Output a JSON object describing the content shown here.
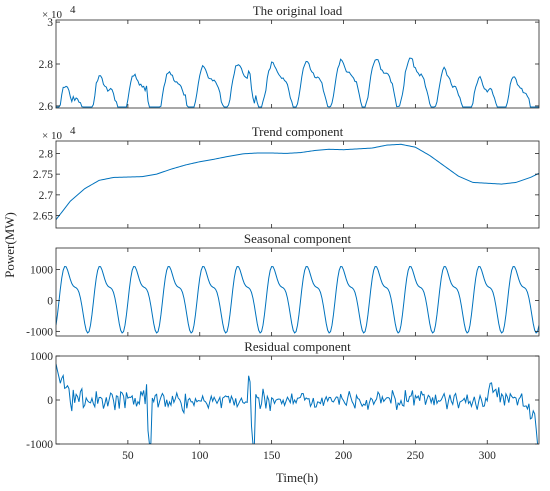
{
  "figure": {
    "xlabel": "Time(h)",
    "ylabel": "Power(MW)",
    "line_color": "#0072BD"
  },
  "chart_data": [
    {
      "type": "line",
      "title": "The original load",
      "exponent_label": "× 10",
      "exponent_power": "4",
      "xlim": [
        0,
        336
      ],
      "ylim": [
        25900,
        30100
      ],
      "yticks": [
        26000,
        28000,
        30000
      ],
      "ytick_labels": [
        "2.6",
        "2.8",
        "3"
      ],
      "xticks": [
        50,
        100,
        150,
        200,
        250,
        300
      ],
      "xtick_labels": [],
      "pattern": {
        "periodic_hours": 24,
        "peaks_near": 28800,
        "troughs_near": 26200
      }
    },
    {
      "type": "line",
      "title": "Trend component",
      "exponent_label": "× 10",
      "exponent_power": "4",
      "xlim": [
        0,
        336
      ],
      "ylim": [
        26200,
        28300
      ],
      "yticks": [
        26500,
        27000,
        27500,
        28000
      ],
      "ytick_labels": [
        "2.65",
        "2.7",
        "2.75",
        "2.8"
      ],
      "xticks": [
        50,
        100,
        150,
        200,
        250,
        300
      ],
      "xtick_labels": [],
      "series": [
        {
          "x": [
            0,
            10,
            20,
            30,
            40,
            50,
            60,
            70,
            80,
            90,
            100,
            110,
            120,
            130,
            140,
            150,
            160,
            170,
            180,
            190,
            200,
            210,
            220,
            230,
            240,
            250,
            260,
            270,
            280,
            290,
            300,
            310,
            320,
            330,
            336
          ],
          "y": [
            26400,
            26850,
            27150,
            27350,
            27420,
            27430,
            27440,
            27500,
            27620,
            27720,
            27800,
            27860,
            27930,
            27990,
            28010,
            28010,
            28000,
            28020,
            28070,
            28100,
            28090,
            28110,
            28130,
            28200,
            28220,
            28150,
            27950,
            27700,
            27450,
            27300,
            27280,
            27260,
            27300,
            27420,
            27520
          ]
        }
      ]
    },
    {
      "type": "line",
      "title": "Seasonal component",
      "xlim": [
        0,
        336
      ],
      "ylim": [
        -1150,
        1700
      ],
      "yticks": [
        -1000,
        0,
        1000
      ],
      "ytick_labels": [
        "-1000",
        "0",
        "1000"
      ],
      "xticks": [
        50,
        100,
        150,
        200,
        250,
        300
      ],
      "xtick_labels": [],
      "pattern": {
        "period_hours": 24,
        "peak": 1400,
        "trough": -1000
      }
    },
    {
      "type": "line",
      "title": "Residual component",
      "xlim": [
        0,
        336
      ],
      "ylim": [
        -1000,
        1000
      ],
      "yticks": [
        -1000,
        0,
        1000
      ],
      "ytick_labels": [
        "-1000",
        "0",
        "1000"
      ],
      "xticks": [
        50,
        100,
        150,
        200,
        250,
        300
      ],
      "xtick_labels": [
        "50",
        "100",
        "150",
        "200",
        "250",
        "300"
      ],
      "pattern": {
        "noise_amplitude": 250,
        "dips": [
          {
            "x": 65,
            "y": -980
          },
          {
            "x": 137,
            "y": -1000
          },
          {
            "x": 336,
            "y": -800
          }
        ],
        "start_level": 750
      }
    }
  ]
}
